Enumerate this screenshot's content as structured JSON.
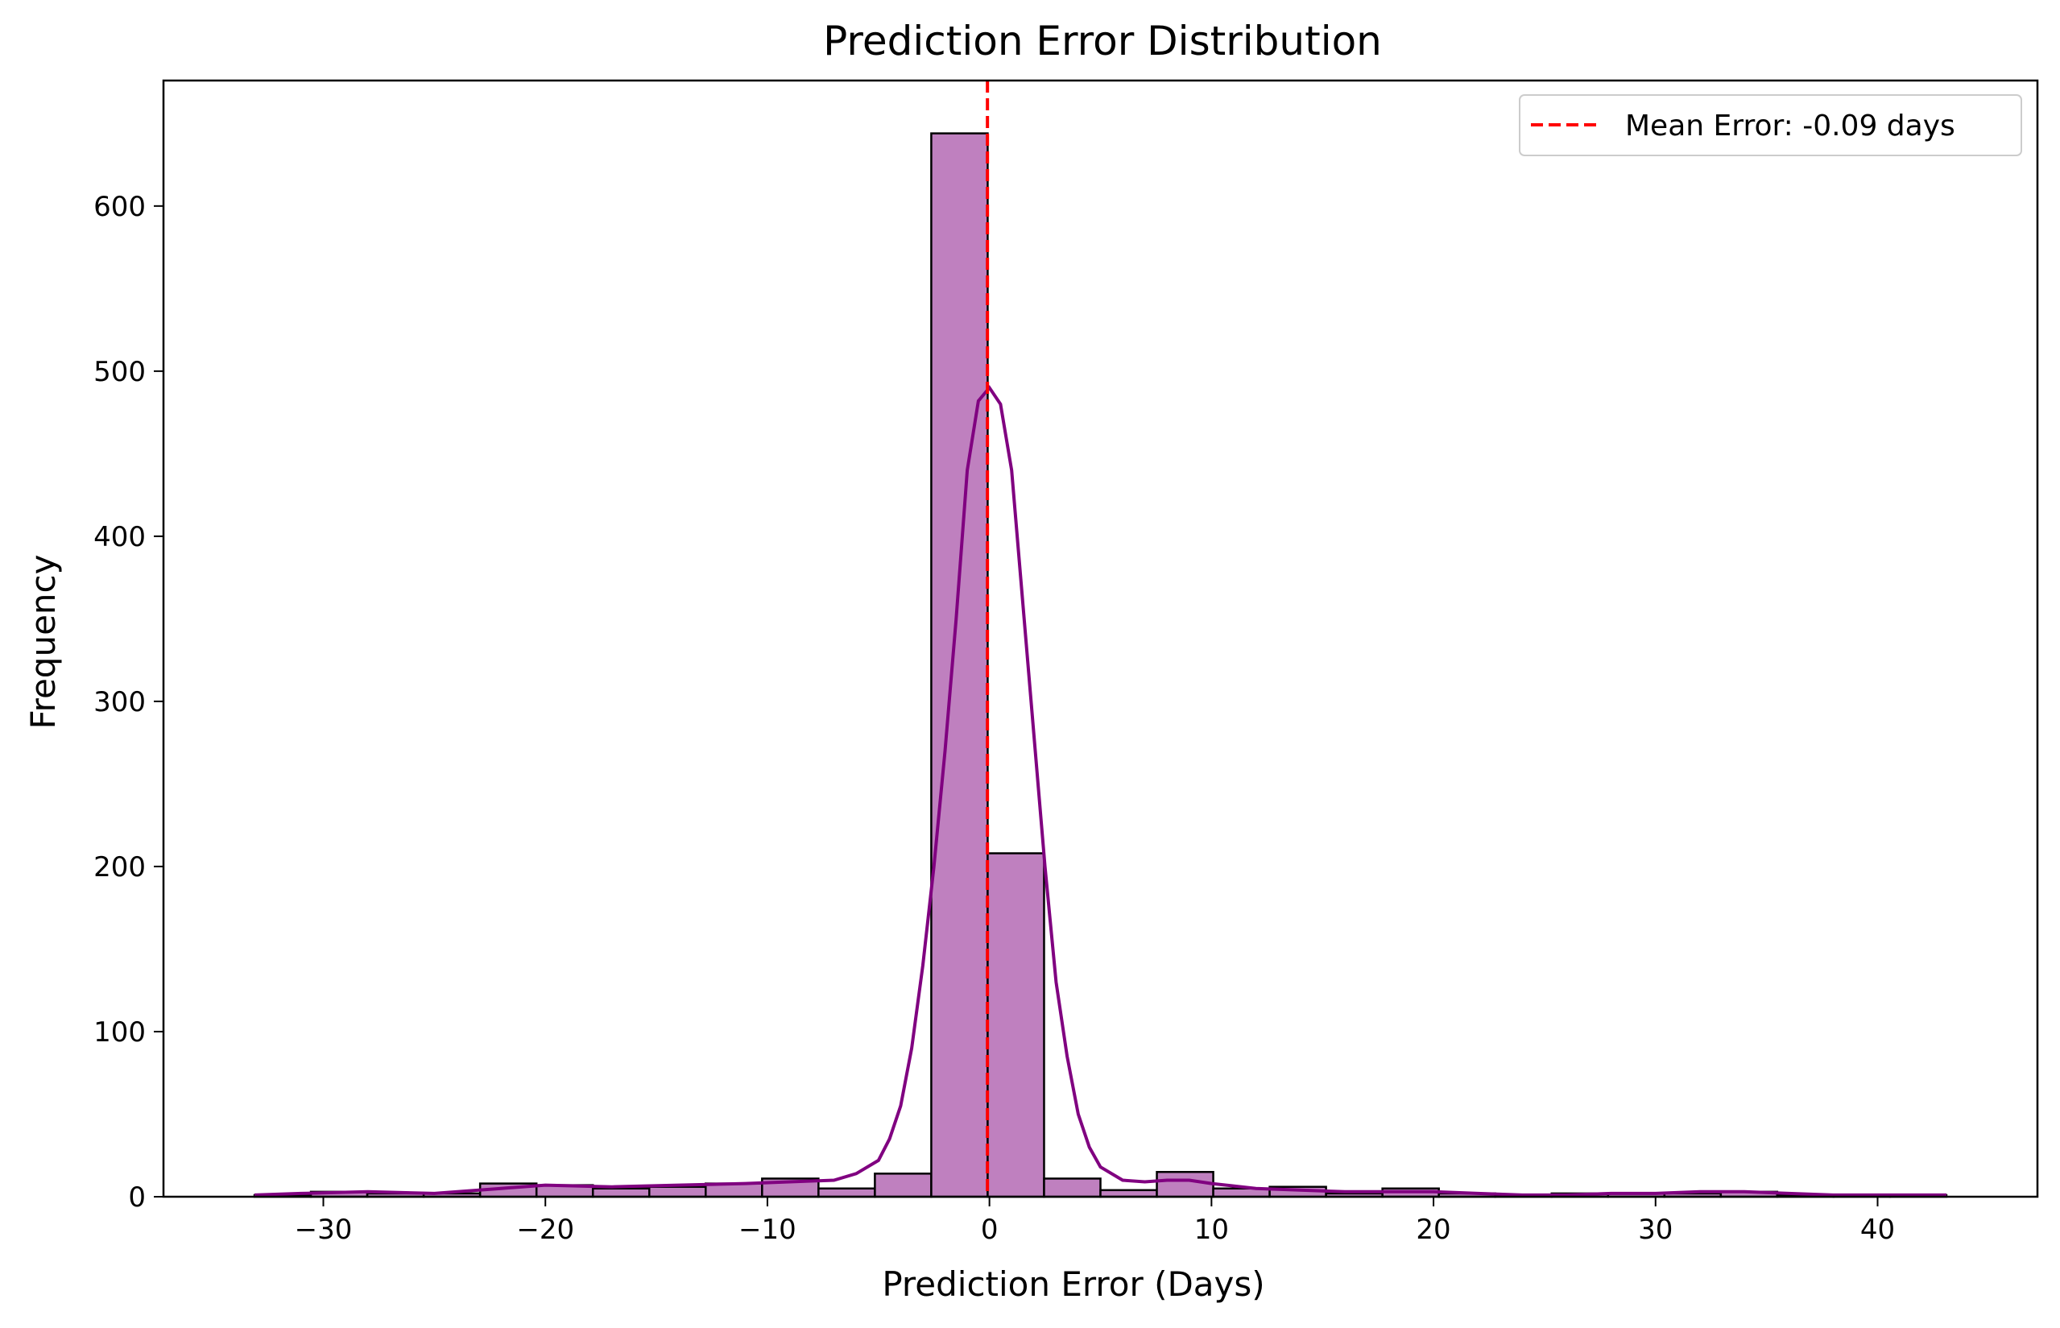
{
  "chart_data": {
    "type": "bar",
    "title": "Prediction Error Distribution",
    "xlabel": "Prediction Error (Days)",
    "ylabel": "Frequency",
    "xlim": [
      -37.2,
      47.2
    ],
    "ylim": [
      0,
      676
    ],
    "xticks": [
      -30,
      -20,
      -10,
      0,
      10,
      20,
      30,
      40
    ],
    "xtick_labels": [
      "−30",
      "−20",
      "−10",
      "0",
      "10",
      "20",
      "30",
      "40"
    ],
    "yticks": [
      0,
      100,
      200,
      300,
      400,
      500,
      600
    ],
    "ytick_labels": [
      "0",
      "100",
      "200",
      "300",
      "400",
      "500",
      "600"
    ],
    "grid": false,
    "legend_position": "top-right",
    "bins": {
      "edges": [
        -33.1,
        -30.56,
        -28.02,
        -25.48,
        -22.94,
        -20.4,
        -17.86,
        -15.32,
        -12.78,
        -10.24,
        -7.7,
        -5.16,
        -2.62,
        -0.08,
        2.46,
        5.0,
        7.54,
        10.08,
        12.62,
        15.16,
        17.7,
        20.24,
        22.78,
        25.32,
        27.86,
        30.4,
        32.94,
        35.48,
        38.02,
        40.56,
        43.1
      ],
      "counts": [
        1,
        3,
        2,
        2,
        8,
        7,
        5,
        6,
        8,
        11,
        5,
        14,
        644,
        208,
        11,
        4,
        15,
        5,
        6,
        2,
        5,
        2,
        1,
        2,
        2,
        2,
        3,
        1,
        1,
        1
      ]
    },
    "kde": {
      "x": [
        -33.1,
        -31.0,
        -28.0,
        -25.0,
        -22.0,
        -20.0,
        -17.0,
        -14.0,
        -11.0,
        -9.0,
        -7.0,
        -6.0,
        -5.0,
        -4.5,
        -4.0,
        -3.5,
        -3.0,
        -2.5,
        -2.0,
        -1.5,
        -1.0,
        -0.5,
        0.0,
        0.5,
        1.0,
        1.5,
        2.0,
        2.5,
        3.0,
        3.5,
        4.0,
        4.5,
        5.0,
        6.0,
        7.0,
        8.0,
        9.0,
        10.0,
        12.0,
        14.0,
        16.0,
        18.0,
        20.0,
        22.0,
        24.0,
        26.0,
        28.0,
        30.0,
        32.0,
        34.0,
        36.0,
        38.0,
        40.0,
        43.1
      ],
      "y": [
        1,
        2,
        3,
        2,
        5,
        7,
        6,
        7,
        8,
        9,
        10,
        14,
        22,
        35,
        55,
        90,
        140,
        200,
        270,
        350,
        440,
        482,
        490,
        480,
        440,
        360,
        280,
        200,
        130,
        85,
        50,
        30,
        18,
        10,
        9,
        10,
        10,
        8,
        5,
        4,
        3,
        3,
        3,
        2,
        1,
        1,
        2,
        2,
        3,
        3,
        2,
        1,
        1,
        1
      ]
    },
    "mean_line": {
      "x": -0.09,
      "label": "Mean Error: -0.09 days",
      "color": "#ff0000"
    },
    "colors": {
      "bar_fill": "#bf80bf",
      "bar_edge": "#000000",
      "kde_line": "#800080",
      "mean_line": "#ff0000"
    }
  }
}
